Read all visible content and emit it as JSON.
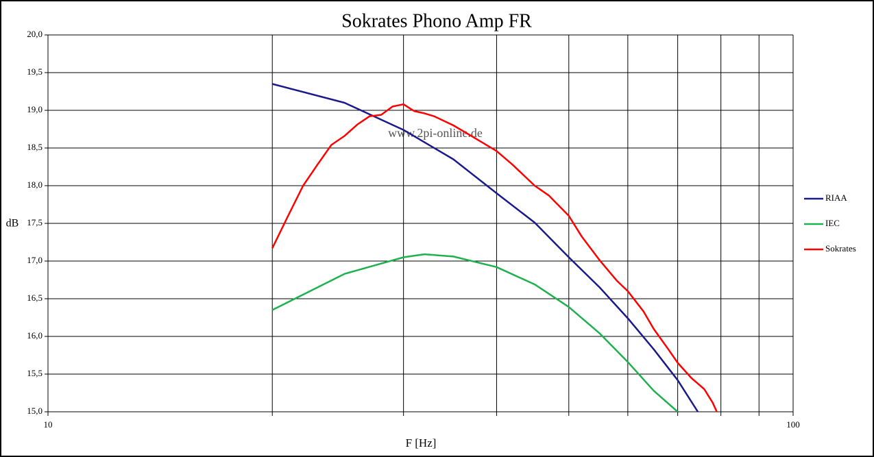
{
  "chart_data": {
    "type": "line",
    "title": "Sokrates Phono Amp FR",
    "x_label": "F [Hz]",
    "y_label": "dB",
    "annotation": "www.2pi-online.de",
    "log_x": true,
    "grid": true,
    "legend": "right",
    "xlim": [
      10,
      100
    ],
    "xticks": [
      10,
      100
    ],
    "xminor_ticks": [
      20,
      30,
      40,
      50,
      60,
      70,
      80,
      90
    ],
    "ylim": [
      15,
      20
    ],
    "yticks": [
      {
        "value": 15,
        "label": "15,0"
      },
      {
        "value": 15.5,
        "label": "15,5"
      },
      {
        "value": 16,
        "label": "16,0"
      },
      {
        "value": 16.5,
        "label": "16,5"
      },
      {
        "value": 17,
        "label": "17,0"
      },
      {
        "value": 17.5,
        "label": "17,5"
      },
      {
        "value": 18,
        "label": "18,0"
      },
      {
        "value": 18.5,
        "label": "18,5"
      },
      {
        "value": 19,
        "label": "19,0"
      },
      {
        "value": 19.5,
        "label": "19,5"
      },
      {
        "value": 20,
        "label": "20,0"
      }
    ],
    "series": [
      {
        "name": "RIAA",
        "color": "#1a1a8c",
        "x": [
          20,
          25,
          30,
          35,
          40,
          45,
          50,
          55,
          60,
          65,
          70,
          74.5
        ],
        "values": [
          19.35,
          19.1,
          18.74,
          18.35,
          17.9,
          17.51,
          17.05,
          16.65,
          16.24,
          15.83,
          15.42,
          15.0
        ]
      },
      {
        "name": "IEC",
        "color": "#1fb050",
        "x": [
          20,
          25,
          30,
          32,
          35,
          40,
          45,
          50,
          55,
          60,
          65,
          70
        ],
        "values": [
          16.35,
          16.83,
          17.05,
          17.09,
          17.06,
          16.92,
          16.69,
          16.39,
          16.04,
          15.66,
          15.28,
          15.0
        ]
      },
      {
        "name": "Sokrates",
        "color": "#ff0000",
        "x": [
          20,
          21,
          22,
          23,
          24,
          25,
          26,
          27,
          28,
          29,
          30,
          31,
          32,
          33,
          35,
          37,
          40,
          42,
          45,
          47,
          50,
          52,
          55,
          58,
          60,
          63,
          65,
          68,
          70,
          73,
          76,
          78,
          79
        ],
        "values": [
          17.17,
          17.6,
          18.0,
          18.28,
          18.54,
          18.66,
          18.81,
          18.92,
          18.94,
          19.05,
          19.08,
          18.99,
          18.96,
          18.92,
          18.8,
          18.66,
          18.46,
          18.28,
          18.0,
          17.87,
          17.6,
          17.33,
          17.01,
          16.74,
          16.6,
          16.33,
          16.1,
          15.83,
          15.65,
          15.45,
          15.3,
          15.12,
          15.0
        ]
      }
    ]
  }
}
